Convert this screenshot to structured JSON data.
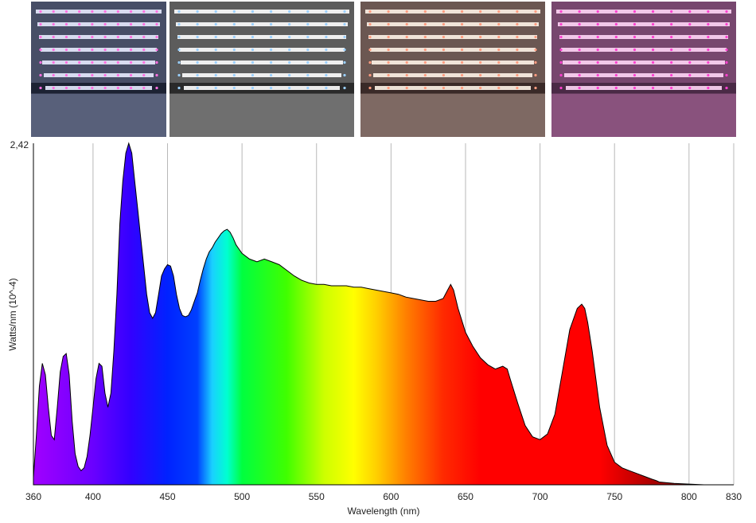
{
  "photos": [
    {
      "name": "photo-1",
      "tint": "#c9d4ff",
      "bg": "#1c2233",
      "bar": "#e8ecff",
      "led": "#ff6fe0"
    },
    {
      "name": "photo-2",
      "tint": "#f2f2f2",
      "bg": "#2a2a2a",
      "bar": "#ffffff",
      "led": "#9ad0ff"
    },
    {
      "name": "photo-3",
      "tint": "#ffe0d0",
      "bg": "#3a2a28",
      "bar": "#fff4e8",
      "led": "#ff9c80"
    },
    {
      "name": "photo-4",
      "tint": "#ff9ee6",
      "bg": "#4a2a46",
      "bar": "#ffd6f6",
      "led": "#ff40d0"
    }
  ],
  "chart_data": {
    "type": "area",
    "xlabel": "Wavelength (nm)",
    "ylabel": "Watts/nm (10^-4)",
    "y_top_label": "2,42",
    "xlim": [
      360,
      830
    ],
    "ylim": [
      0,
      2.42
    ],
    "xticks": [
      360,
      400,
      450,
      500,
      550,
      600,
      650,
      700,
      750,
      800,
      830
    ],
    "grid": "vertical",
    "x": [
      360,
      362,
      364,
      366,
      368,
      370,
      372,
      374,
      376,
      378,
      380,
      382,
      384,
      386,
      388,
      390,
      392,
      394,
      396,
      398,
      400,
      402,
      404,
      406,
      408,
      410,
      412,
      414,
      416,
      418,
      420,
      422,
      424,
      426,
      428,
      430,
      432,
      434,
      436,
      438,
      440,
      442,
      444,
      446,
      448,
      450,
      452,
      454,
      456,
      458,
      460,
      462,
      464,
      466,
      468,
      470,
      472,
      474,
      476,
      478,
      480,
      482,
      484,
      486,
      488,
      490,
      492,
      494,
      496,
      498,
      500,
      505,
      510,
      515,
      520,
      525,
      530,
      535,
      540,
      545,
      550,
      555,
      560,
      565,
      570,
      575,
      580,
      585,
      590,
      595,
      600,
      605,
      610,
      615,
      620,
      625,
      630,
      635,
      638,
      640,
      642,
      645,
      650,
      655,
      660,
      665,
      670,
      675,
      678,
      680,
      685,
      690,
      695,
      700,
      705,
      710,
      715,
      720,
      725,
      728,
      730,
      732,
      735,
      740,
      745,
      750,
      755,
      760,
      765,
      770,
      775,
      778,
      780,
      790,
      800,
      810
    ],
    "y": [
      0.05,
      0.35,
      0.7,
      0.86,
      0.78,
      0.55,
      0.35,
      0.32,
      0.55,
      0.8,
      0.91,
      0.93,
      0.78,
      0.45,
      0.22,
      0.13,
      0.1,
      0.12,
      0.2,
      0.35,
      0.55,
      0.75,
      0.86,
      0.84,
      0.65,
      0.55,
      0.65,
      0.95,
      1.35,
      1.85,
      2.15,
      2.35,
      2.42,
      2.35,
      2.15,
      1.95,
      1.75,
      1.55,
      1.35,
      1.22,
      1.18,
      1.22,
      1.35,
      1.48,
      1.53,
      1.56,
      1.55,
      1.48,
      1.35,
      1.25,
      1.2,
      1.19,
      1.2,
      1.24,
      1.3,
      1.36,
      1.45,
      1.53,
      1.6,
      1.65,
      1.68,
      1.72,
      1.75,
      1.78,
      1.8,
      1.81,
      1.79,
      1.75,
      1.7,
      1.67,
      1.64,
      1.6,
      1.58,
      1.6,
      1.58,
      1.56,
      1.52,
      1.48,
      1.45,
      1.43,
      1.42,
      1.42,
      1.41,
      1.41,
      1.41,
      1.4,
      1.4,
      1.39,
      1.38,
      1.37,
      1.36,
      1.35,
      1.33,
      1.32,
      1.31,
      1.3,
      1.3,
      1.32,
      1.38,
      1.42,
      1.38,
      1.25,
      1.08,
      0.98,
      0.9,
      0.85,
      0.82,
      0.84,
      0.82,
      0.75,
      0.58,
      0.42,
      0.34,
      0.32,
      0.36,
      0.5,
      0.8,
      1.1,
      1.25,
      1.28,
      1.25,
      1.15,
      0.95,
      0.55,
      0.28,
      0.16,
      0.12,
      0.1,
      0.08,
      0.06,
      0.04,
      0.03,
      0.02,
      0.01,
      0.005,
      0.0
    ],
    "spectrum_stops": [
      {
        "nm": 360,
        "color": "#a100ff"
      },
      {
        "nm": 400,
        "color": "#6a00ff"
      },
      {
        "nm": 425,
        "color": "#3300ff"
      },
      {
        "nm": 450,
        "color": "#0022ff"
      },
      {
        "nm": 470,
        "color": "#0040ff"
      },
      {
        "nm": 480,
        "color": "#1ad0ff"
      },
      {
        "nm": 490,
        "color": "#00ffd0"
      },
      {
        "nm": 500,
        "color": "#00ff40"
      },
      {
        "nm": 530,
        "color": "#40ff00"
      },
      {
        "nm": 555,
        "color": "#ccff00"
      },
      {
        "nm": 575,
        "color": "#ffff00"
      },
      {
        "nm": 590,
        "color": "#ffd000"
      },
      {
        "nm": 610,
        "color": "#ff8000"
      },
      {
        "nm": 635,
        "color": "#ff2a00"
      },
      {
        "nm": 660,
        "color": "#ff0000"
      },
      {
        "nm": 740,
        "color": "#ff0000"
      },
      {
        "nm": 780,
        "color": "#a00000"
      },
      {
        "nm": 830,
        "color": "#600000"
      }
    ]
  }
}
